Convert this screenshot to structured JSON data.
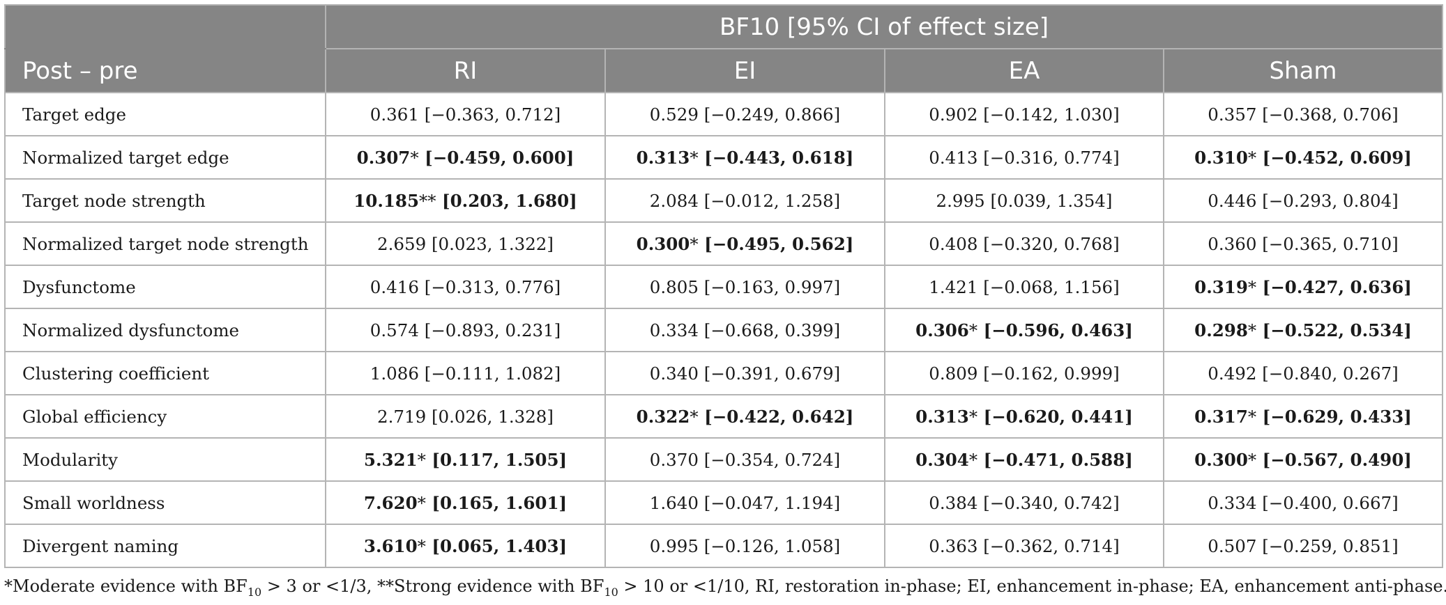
{
  "header": {
    "group_title": "BF10 [95% CI of effect size]",
    "row_header": "Post – pre",
    "columns": [
      "RI",
      "EI",
      "EA",
      "Sham"
    ]
  },
  "rows": [
    {
      "label": "Target edge",
      "cells": [
        {
          "value": "0.361",
          "stars": "",
          "ci": " [−0.363, 0.712]",
          "bold": false
        },
        {
          "value": "0.529",
          "stars": "",
          "ci": " [−0.249, 0.866]",
          "bold": false
        },
        {
          "value": "0.902",
          "stars": "",
          "ci": " [−0.142, 1.030]",
          "bold": false
        },
        {
          "value": "0.357",
          "stars": "",
          "ci": " [−0.368, 0.706]",
          "bold": false
        }
      ]
    },
    {
      "label": "Normalized target edge",
      "cells": [
        {
          "value": "0.307",
          "stars": "*",
          "ci": " [−0.459, 0.600]",
          "bold": true
        },
        {
          "value": "0.313",
          "stars": "*",
          "ci": " [−0.443, 0.618]",
          "bold": true
        },
        {
          "value": "0.413",
          "stars": "",
          "ci": " [−0.316, 0.774]",
          "bold": false
        },
        {
          "value": "0.310",
          "stars": "*",
          "ci": " [−0.452, 0.609]",
          "bold": true
        }
      ]
    },
    {
      "label": "Target node strength",
      "cells": [
        {
          "value": "10.185",
          "stars": "**",
          "ci": " [0.203, 1.680]",
          "bold": true
        },
        {
          "value": "2.084",
          "stars": "",
          "ci": " [−0.012, 1.258]",
          "bold": false
        },
        {
          "value": "2.995",
          "stars": "",
          "ci": " [0.039, 1.354]",
          "bold": false
        },
        {
          "value": "0.446",
          "stars": "",
          "ci": " [−0.293, 0.804]",
          "bold": false
        }
      ]
    },
    {
      "label": "Normalized target node strength",
      "cells": [
        {
          "value": "2.659",
          "stars": "",
          "ci": " [0.023, 1.322]",
          "bold": false
        },
        {
          "value": "0.300",
          "stars": "*",
          "ci": " [−0.495, 0.562]",
          "bold": true
        },
        {
          "value": "0.408",
          "stars": "",
          "ci": " [−0.320, 0.768]",
          "bold": false
        },
        {
          "value": "0.360",
          "stars": "",
          "ci": " [−0.365, 0.710]",
          "bold": false
        }
      ]
    },
    {
      "label": "Dysfunctome",
      "cells": [
        {
          "value": "0.416",
          "stars": "",
          "ci": " [−0.313, 0.776]",
          "bold": false
        },
        {
          "value": "0.805",
          "stars": "",
          "ci": " [−0.163, 0.997]",
          "bold": false
        },
        {
          "value": "1.421",
          "stars": "",
          "ci": " [−0.068, 1.156]",
          "bold": false
        },
        {
          "value": "0.319",
          "stars": "*",
          "ci": " [−0.427, 0.636]",
          "bold": true
        }
      ]
    },
    {
      "label": "Normalized dysfunctome",
      "cells": [
        {
          "value": "0.574",
          "stars": "",
          "ci": " [−0.893, 0.231]",
          "bold": false
        },
        {
          "value": "0.334",
          "stars": "",
          "ci": " [−0.668, 0.399]",
          "bold": false
        },
        {
          "value": "0.306",
          "stars": "*",
          "ci": " [−0.596, 0.463]",
          "bold": true
        },
        {
          "value": "0.298",
          "stars": "*",
          "ci": " [−0.522, 0.534]",
          "bold": true
        }
      ]
    },
    {
      "label": "Clustering coefficient",
      "cells": [
        {
          "value": "1.086",
          "stars": "",
          "ci": " [−0.111, 1.082]",
          "bold": false
        },
        {
          "value": "0.340",
          "stars": "",
          "ci": " [−0.391, 0.679]",
          "bold": false
        },
        {
          "value": "0.809",
          "stars": "",
          "ci": " [−0.162, 0.999]",
          "bold": false
        },
        {
          "value": "0.492",
          "stars": "",
          "ci": " [−0.840, 0.267]",
          "bold": false
        }
      ]
    },
    {
      "label": "Global efficiency",
      "cells": [
        {
          "value": "2.719",
          "stars": "",
          "ci": " [0.026, 1.328]",
          "bold": false
        },
        {
          "value": "0.322",
          "stars": "*",
          "ci": " [−0.422, 0.642]",
          "bold": true
        },
        {
          "value": "0.313",
          "stars": "*",
          "ci": " [−0.620, 0.441]",
          "bold": true
        },
        {
          "value": "0.317",
          "stars": "*",
          "ci": " [−0.629, 0.433]",
          "bold": true
        }
      ]
    },
    {
      "label": "Modularity",
      "cells": [
        {
          "value": "5.321",
          "stars": "*",
          "ci": " [0.117, 1.505]",
          "bold": true
        },
        {
          "value": "0.370",
          "stars": "",
          "ci": " [−0.354, 0.724]",
          "bold": false
        },
        {
          "value": "0.304",
          "stars": "*",
          "ci": " [−0.471, 0.588]",
          "bold": true
        },
        {
          "value": "0.300",
          "stars": "*",
          "ci": " [−0.567, 0.490]",
          "bold": true
        }
      ]
    },
    {
      "label": "Small worldness",
      "cells": [
        {
          "value": "7.620",
          "stars": "*",
          "ci": " [0.165, 1.601]",
          "bold": true
        },
        {
          "value": "1.640",
          "stars": "",
          "ci": " [−0.047, 1.194]",
          "bold": false
        },
        {
          "value": "0.384",
          "stars": "",
          "ci": " [−0.340, 0.742]",
          "bold": false
        },
        {
          "value": "0.334",
          "stars": "",
          "ci": " [−0.400, 0.667]",
          "bold": false
        }
      ]
    },
    {
      "label": "Divergent naming",
      "cells": [
        {
          "value": "3.610",
          "stars": "*",
          "ci": " [0.065, 1.403]",
          "bold": true
        },
        {
          "value": "0.995",
          "stars": "",
          "ci": " [−0.126, 1.058]",
          "bold": false
        },
        {
          "value": "0.363",
          "stars": "",
          "ci": " [−0.362, 0.714]",
          "bold": false
        },
        {
          "value": "0.507",
          "stars": "",
          "ci": " [−0.259, 0.851]",
          "bold": false
        }
      ]
    }
  ],
  "footnote": {
    "part1": "*Moderate evidence with BF",
    "sub1": "10",
    "part2": " > 3 or <1/3, **Strong evidence with BF",
    "sub2": "10",
    "part3": " > 10 or <1/10, RI, restoration in-phase; EI, enhancement in-phase; EA, enhancement anti-phase."
  }
}
